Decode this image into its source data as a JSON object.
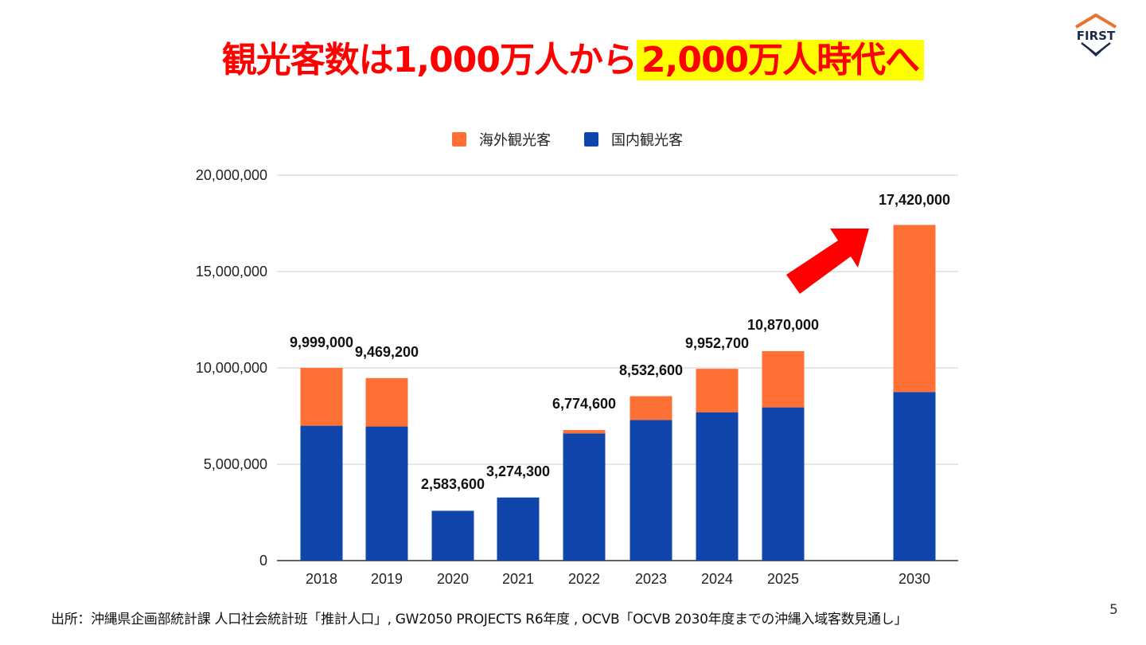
{
  "slide": {
    "title_main": "観光客数は1,000万人から",
    "title_highlight": "2,000万人時代へ",
    "source": "出所：沖縄県企画部統計課 人口社会統計班「推計人口」, GW2050 PROJECTS R6年度 , OCVB「OCVB 2030年度までの沖縄入域客数見通し」",
    "page_number": "5",
    "logo_text": "FIRST",
    "colors": {
      "title": "#ff0000",
      "highlight": "#ffff00",
      "arrow": "#ff0000"
    }
  },
  "chart_data": {
    "type": "bar",
    "stacked": true,
    "categories": [
      "2018",
      "2019",
      "2020",
      "2021",
      "2022",
      "2023",
      "2024",
      "2025",
      "2030"
    ],
    "series": [
      {
        "name": "国内観光客",
        "color": "#1046ab",
        "values": [
          7000000,
          6960000,
          2583600,
          3274300,
          6600000,
          7300000,
          7700000,
          7950000,
          8750000
        ]
      },
      {
        "name": "海外観光客",
        "color": "#ff7035",
        "values": [
          2999000,
          2509200,
          0,
          0,
          174600,
          1232600,
          2252700,
          2920000,
          8670000
        ]
      }
    ],
    "total_labels": [
      "9,999,000",
      "9,469,200",
      "2,583,600",
      "3,274,300",
      "6,774,600",
      "8,532,600",
      "9,952,700",
      "10,870,000",
      "17,420,000"
    ],
    "y_ticks": [
      "0",
      "5,000,000",
      "10,000,000",
      "15,000,000",
      "20,000,000"
    ],
    "ylim": [
      0,
      20000000
    ],
    "grid": true,
    "legend_position": "top",
    "legend_order": [
      "海外観光客",
      "国内観光客"
    ]
  }
}
